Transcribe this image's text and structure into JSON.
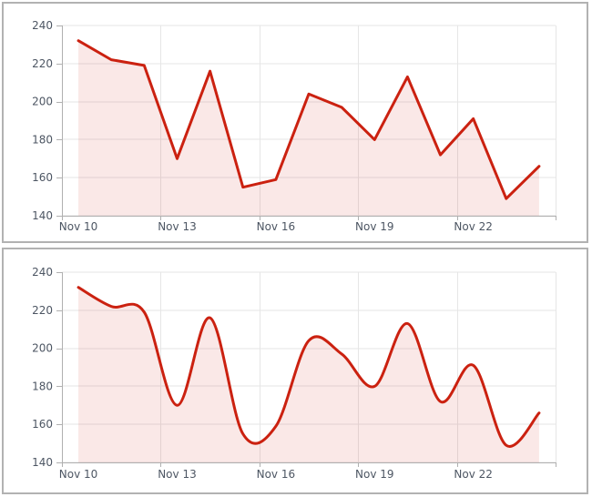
{
  "page": {
    "background": "#ffffff",
    "panel_border_color": "#b2b2b2"
  },
  "chart_data": [
    {
      "id": "top-chart",
      "type": "line",
      "line_shape": "straight",
      "title": "",
      "xlabel": "",
      "ylabel": "",
      "x": [
        "Nov 10",
        "Nov 11",
        "Nov 12",
        "Nov 13",
        "Nov 14",
        "Nov 15",
        "Nov 16",
        "Nov 17",
        "Nov 18",
        "Nov 19",
        "Nov 20",
        "Nov 21",
        "Nov 22",
        "Nov 23",
        "Nov 24"
      ],
      "values": [
        232,
        222,
        219,
        170,
        216,
        155,
        159,
        204,
        197,
        180,
        213,
        172,
        191,
        149,
        166
      ],
      "xticks": [
        "Nov 10",
        "Nov 13",
        "Nov 16",
        "Nov 19",
        "Nov 22"
      ],
      "xtick_every": 3,
      "yticks": [
        140,
        160,
        180,
        200,
        220,
        240
      ],
      "ylim": [
        140,
        240
      ],
      "grid": true,
      "legend": false,
      "area_fill": true,
      "colors": {
        "line": "#cb2110",
        "fill": "rgba(203,33,16,0.10)",
        "grid": "#e6e6e6",
        "axis": "#b0b0b0",
        "label": "#4d5663"
      }
    },
    {
      "id": "bottom-chart",
      "type": "line",
      "line_shape": "smooth",
      "title": "",
      "xlabel": "",
      "ylabel": "",
      "x": [
        "Nov 10",
        "Nov 11",
        "Nov 12",
        "Nov 13",
        "Nov 14",
        "Nov 15",
        "Nov 16",
        "Nov 17",
        "Nov 18",
        "Nov 19",
        "Nov 20",
        "Nov 21",
        "Nov 22",
        "Nov 23",
        "Nov 24"
      ],
      "values": [
        232,
        222,
        219,
        170,
        216,
        155,
        159,
        204,
        197,
        180,
        213,
        172,
        191,
        149,
        166
      ],
      "xticks": [
        "Nov 10",
        "Nov 13",
        "Nov 16",
        "Nov 19",
        "Nov 22"
      ],
      "xtick_every": 3,
      "yticks": [
        140,
        160,
        180,
        200,
        220,
        240
      ],
      "ylim": [
        140,
        240
      ],
      "grid": true,
      "legend": false,
      "area_fill": true,
      "colors": {
        "line": "#cb2110",
        "fill": "rgba(203,33,16,0.10)",
        "grid": "#e6e6e6",
        "axis": "#b0b0b0",
        "label": "#4d5663"
      }
    }
  ]
}
